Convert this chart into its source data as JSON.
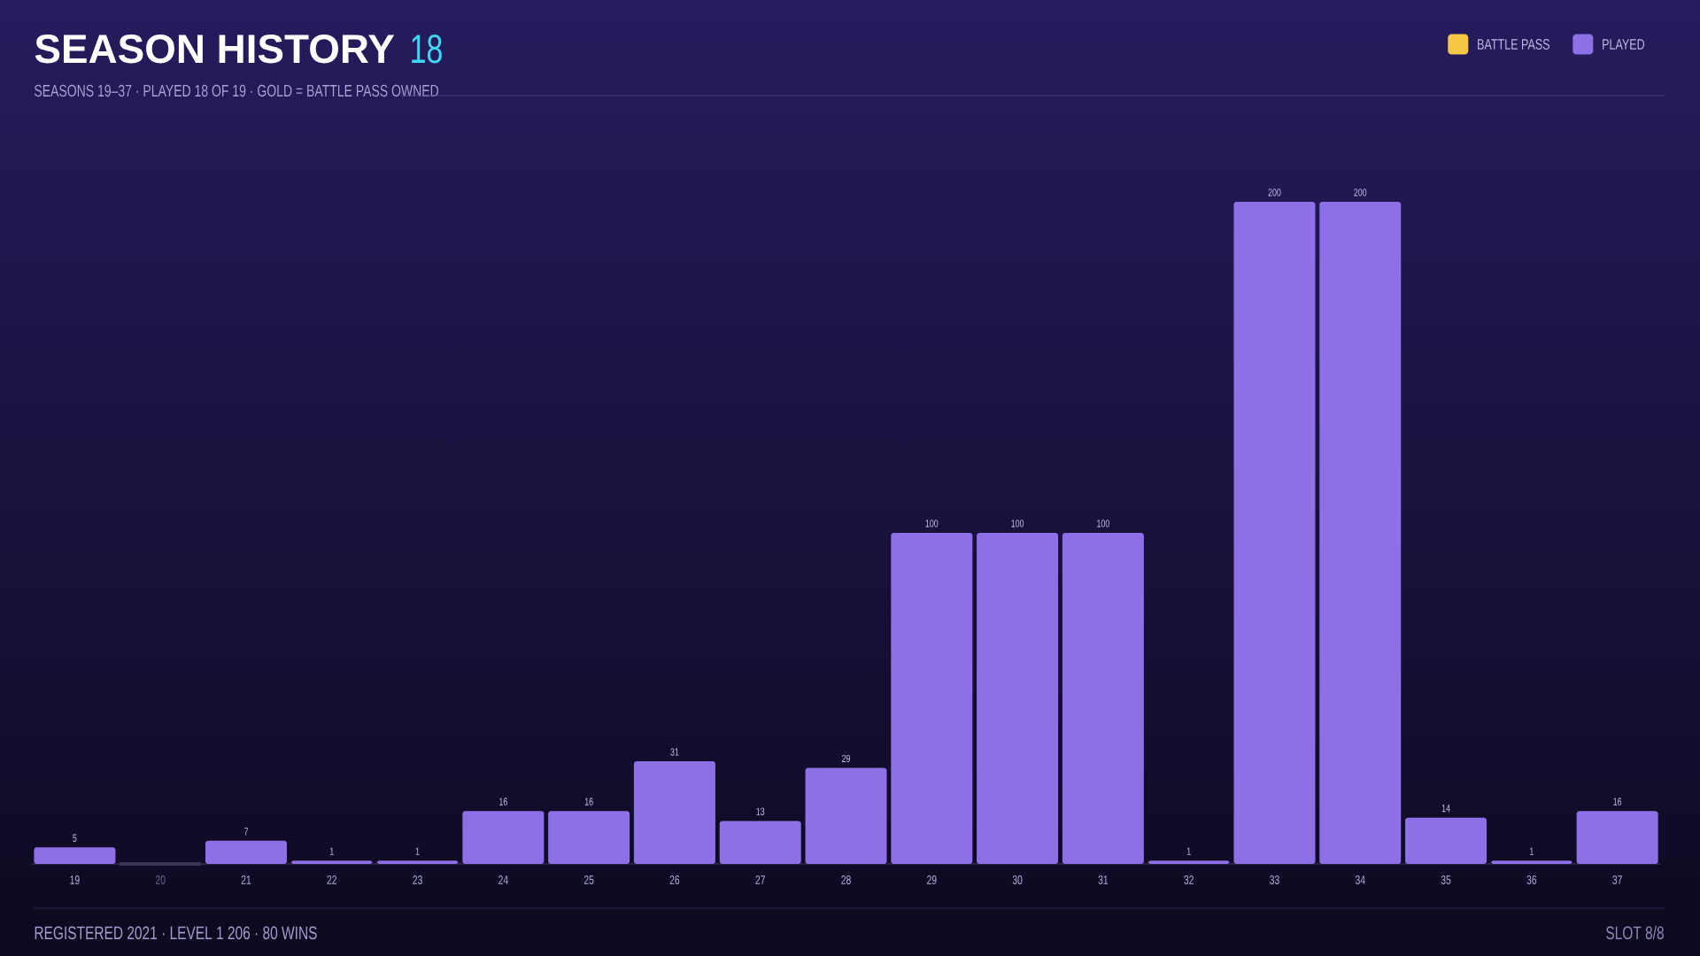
{
  "chart_data": {
    "type": "bar",
    "title": "SEASON HISTORY",
    "subtitle": "SEASONS 19–37  ·  PLAYED 18 OF 19  ·  GOLD = BATTLE PASS OWNED",
    "categories": [
      "19",
      "20",
      "21",
      "22",
      "23",
      "24",
      "25",
      "26",
      "27",
      "28",
      "29",
      "30",
      "31",
      "32",
      "33",
      "34",
      "35",
      "36",
      "37"
    ],
    "series": [
      {
        "name": "BATTLE PASS",
        "color": "#f7c843",
        "values": [
          null,
          null,
          null,
          null,
          null,
          null,
          null,
          null,
          null,
          null,
          null,
          null,
          null,
          null,
          null,
          null,
          null,
          null,
          null
        ]
      },
      {
        "name": "PLAYED",
        "color": "#8d70e6",
        "colors": [
          "#8d70e6",
          "#3a3452",
          "#8d70e6",
          "#8d70e6",
          "#8d70e6",
          "#8d70e6",
          "#8d70e6",
          "#8d70e6",
          "#8d70e6",
          "#8d70e6",
          "#8d70e6",
          "#8d70e6",
          "#8d70e6",
          "#8d70e6",
          "#8d70e6",
          "#8d70e6",
          "#8d70e6",
          "#8d70e6",
          "#8d70e6"
        ],
        "values": [
          5,
          0,
          7,
          1,
          1,
          16,
          16,
          31,
          13,
          29,
          100,
          100,
          100,
          1,
          200,
          200,
          14,
          1,
          16
        ],
        "value_labels": [
          "5",
          null,
          "7",
          "1",
          "1",
          "16",
          "16",
          "31",
          "13",
          "29",
          "100",
          "100",
          "100",
          "1",
          "200",
          "200",
          "14",
          "1",
          "16"
        ]
      }
    ],
    "legend": "top right",
    "tick_labels": "x",
    "annotations": [
      "18",
      "REGISTERED 2021  ·  LEVEL 1 206  ·  80 WINS",
      "SLOT 8/8"
    ]
  }
}
